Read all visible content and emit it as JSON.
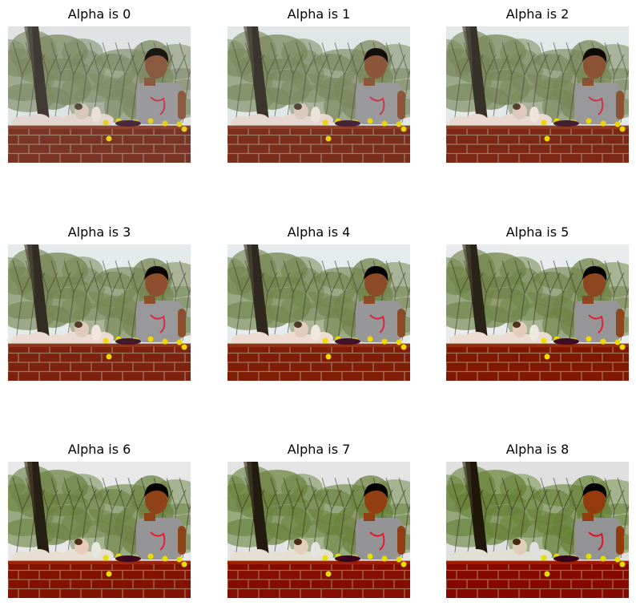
{
  "figure": {
    "panels": [
      {
        "title": "Alpha is 0",
        "alpha": 0
      },
      {
        "title": "Alpha is 1",
        "alpha": 1
      },
      {
        "title": "Alpha is 2",
        "alpha": 2
      },
      {
        "title": "Alpha is 3",
        "alpha": 3
      },
      {
        "title": "Alpha is 4",
        "alpha": 4
      },
      {
        "title": "Alpha is 5",
        "alpha": 5
      },
      {
        "title": "Alpha is 6",
        "alpha": 6
      },
      {
        "title": "Alpha is 7",
        "alpha": 7
      },
      {
        "title": "Alpha is 8",
        "alpha": 8
      }
    ]
  },
  "photo": {
    "subject": "boy standing behind brick wall with stuffed animals and yellow flowers, trees in background",
    "colors": {
      "sky": "#dfe3e4",
      "foliage": "#7c8a62",
      "trunk": "#3f3b34",
      "shirt": "#9a9a9c",
      "hair": "#1a1614",
      "skin": "#8a5a40",
      "plush": "#e3d6cf",
      "brick": "#7a3424",
      "mortar": "#9a7f6e",
      "flower": "#e6d21c"
    }
  }
}
